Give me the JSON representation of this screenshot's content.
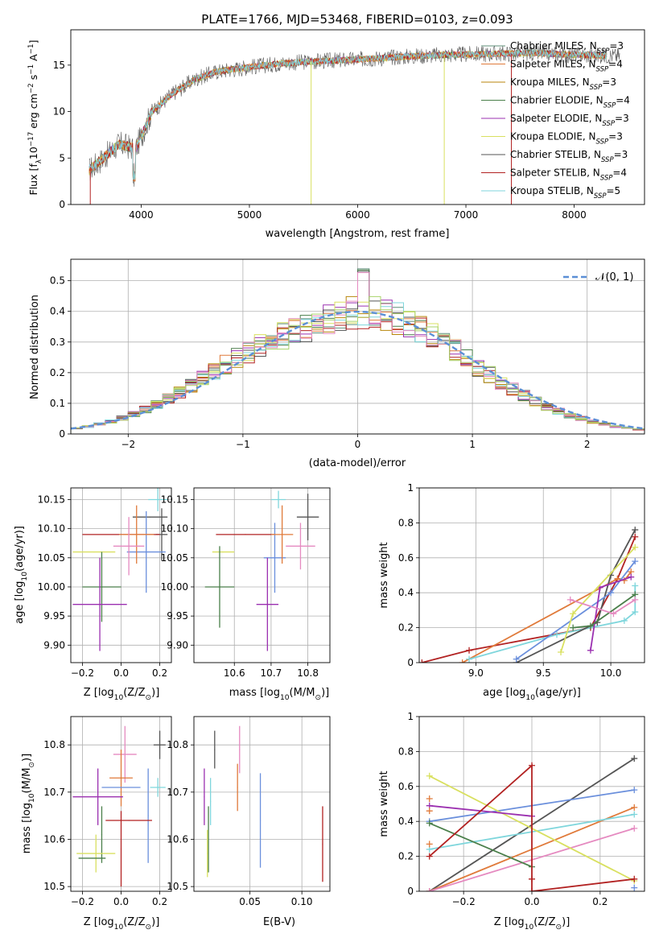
{
  "figure": {
    "title": "PLATE=1766, MJD=53468, FIBERID=0103, z=0.093"
  },
  "colors": {
    "Chabrier MILES": "#5f8f7a",
    "Salpeter MILES": "#e07a3a",
    "Kroupa MILES": "#b8860b",
    "Chabrier ELODIE": "#4a7f4a",
    "Salpeter ELODIE": "#9b30b0",
    "Kroupa ELODIE": "#d9e060",
    "Chabrier STELIB": "#555555",
    "Salpeter STELIB": "#b22222",
    "Kroupa STELIB": "#7fd6dc",
    "extra_blue": "#6a8fdc",
    "extra_pink": "#e58ac0",
    "extra_green": "#a8d36a"
  },
  "chart_data": [
    {
      "type": "line",
      "panel": "spectrum",
      "title": "PLATE=1766, MJD=53468, FIBERID=0103, z=0.093",
      "xlabel": "wavelength [Angstrom, rest frame]",
      "ylabel_parts": [
        "Flux [f",
        "λ",
        "10",
        "−17",
        " erg cm",
        "−2",
        " s",
        "−1",
        " A",
        "−1",
        "]"
      ],
      "xlim": [
        3350,
        8650
      ],
      "ylim": [
        0,
        18.8
      ],
      "xticks": [
        4000,
        5000,
        6000,
        7000,
        8000
      ],
      "yticks": [
        0,
        5,
        10,
        15
      ],
      "legend": "top-right",
      "series_names": [
        "Chabrier MILES, N_SSP=3",
        "Salpeter MILES, N_SSP=4",
        "Kroupa MILES, N_SSP=3",
        "Chabrier ELODIE, N_SSP=4",
        "Salpeter ELODIE, N_SSP=3",
        "Kroupa ELODIE, N_SSP=3",
        "Chabrier STELIB, N_SSP=3",
        "Salpeter STELIB, N_SSP=4",
        "Kroupa STELIB, N_SSP=5"
      ],
      "legend_entries": [
        {
          "base": "Chabrier MILES, N",
          "sub": "SSP",
          "tail": "=3",
          "color": "#5f8f7a"
        },
        {
          "base": "Salpeter MILES, N",
          "sub": "SSP",
          "tail": "=4",
          "color": "#e07a3a"
        },
        {
          "base": "Kroupa MILES, N",
          "sub": "SSP",
          "tail": "=3",
          "color": "#b8860b"
        },
        {
          "base": "Chabrier ELODIE, N",
          "sub": "SSP",
          "tail": "=4",
          "color": "#4a7f4a"
        },
        {
          "base": "Salpeter ELODIE, N",
          "sub": "SSP",
          "tail": "=3",
          "color": "#9b30b0"
        },
        {
          "base": "Kroupa ELODIE, N",
          "sub": "SSP",
          "tail": "=3",
          "color": "#d9e060"
        },
        {
          "base": "Chabrier STELIB, N",
          "sub": "SSP",
          "tail": "=3",
          "color": "#555555"
        },
        {
          "base": "Salpeter STELIB, N",
          "sub": "SSP",
          "tail": "=4",
          "color": "#b22222"
        },
        {
          "base": "Kroupa STELIB, N",
          "sub": "SSP",
          "tail": "=5",
          "color": "#7fd6dc"
        }
      ],
      "continuum": {
        "x": [
          3500,
          3650,
          3800,
          3950,
          4100,
          4300,
          4500,
          4700,
          5000,
          5300,
          5600,
          6000,
          6400,
          6800,
          7200,
          7600,
          8000,
          8400
        ],
        "y": [
          3.5,
          5.0,
          6.5,
          6.0,
          10.0,
          12.0,
          13.5,
          14.3,
          14.8,
          15.2,
          15.4,
          15.6,
          15.9,
          16.1,
          16.2,
          16.3,
          16.1,
          16.0
        ]
      },
      "drops": [
        {
          "x": 7420,
          "color": "#b22222"
        },
        {
          "x": 6800,
          "color": "#d9e060"
        },
        {
          "x": 5570,
          "color": "#d9e060"
        },
        {
          "x": 3530,
          "color": "#b22222"
        }
      ]
    },
    {
      "type": "bar",
      "panel": "residual histogram",
      "xlabel": "(data-model)/error",
      "ylabel": "Normed distribution",
      "xlim": [
        -2.5,
        2.5
      ],
      "ylim": [
        0,
        0.57
      ],
      "xticks": [
        -2,
        -1,
        0,
        1,
        2
      ],
      "yticks": [
        0.0,
        0.1,
        0.2,
        0.3,
        0.4,
        0.5
      ],
      "legend_label": "𝒩(0, 1)",
      "gauss_color": "#5b8fd6",
      "bin_edges_start": -2.5,
      "bin_width": 0.1,
      "gaussian_values": [
        0.018,
        0.024,
        0.032,
        0.041,
        0.052,
        0.065,
        0.08,
        0.097,
        0.116,
        0.136,
        0.158,
        0.18,
        0.203,
        0.226,
        0.248,
        0.269,
        0.288,
        0.306,
        0.321,
        0.334,
        0.347,
        0.358,
        0.372,
        0.39,
        0.397,
        0.399,
        0.397,
        0.39,
        0.377,
        0.361,
        0.341,
        0.319,
        0.295,
        0.27,
        0.244,
        0.218,
        0.193,
        0.169,
        0.146,
        0.125,
        0.106,
        0.089,
        0.074,
        0.061,
        0.05,
        0.04,
        0.032,
        0.025,
        0.02,
        0.015
      ]
    },
    {
      "type": "scatter",
      "panel": "age vs Z",
      "xlabel_parts": [
        "Z [log",
        "10",
        "(Z/Z",
        "⊙",
        ")]"
      ],
      "ylabel_parts": [
        "age  [log",
        "10",
        "(age/yr)]"
      ],
      "xlim": [
        -0.26,
        0.26
      ],
      "ylim": [
        9.87,
        10.17
      ],
      "xticks": [
        -0.2,
        0.0,
        0.2
      ],
      "xticklabels": [
        "−0.2",
        "0.0",
        "0.2"
      ],
      "yticks": [
        9.9,
        9.95,
        10.0,
        10.05,
        10.1,
        10.15
      ],
      "yticklabels": [
        "9.90",
        "9.95",
        "10.00",
        "10.05",
        "10.10",
        "10.15"
      ],
      "points": [
        {
          "x": 0.19,
          "y": 10.15,
          "xerr": 0.05,
          "yerr": 0.02,
          "color": "#7fd6dc"
        },
        {
          "x": 0.21,
          "y": 10.09,
          "xerr": 0.03,
          "yerr": 0.045,
          "color": "#555555"
        },
        {
          "x": 0.15,
          "y": 10.12,
          "xerr": 0.09,
          "yerr": 0.0,
          "color": "#555555"
        },
        {
          "x": 0.0,
          "y": 10.09,
          "xerr": 0.2,
          "yerr": 0.0,
          "color": "#b22222"
        },
        {
          "x": 0.13,
          "y": 10.06,
          "xerr": 0.1,
          "yerr": 0.07,
          "color": "#6a8fdc"
        },
        {
          "x": 0.08,
          "y": 10.09,
          "xerr": 0.09,
          "yerr": 0.05,
          "color": "#e07a3a"
        },
        {
          "x": 0.04,
          "y": 10.07,
          "xerr": 0.08,
          "yerr": 0.05,
          "color": "#e58ac0"
        },
        {
          "x": -0.14,
          "y": 10.06,
          "xerr": 0.11,
          "yerr": 0.0,
          "color": "#d9e060"
        },
        {
          "x": -0.1,
          "y": 10.0,
          "xerr": 0.1,
          "yerr": 0.06,
          "color": "#4a7f4a"
        },
        {
          "x": -0.11,
          "y": 9.97,
          "xerr": 0.14,
          "yerr": 0.08,
          "color": "#9b30b0"
        }
      ]
    },
    {
      "type": "scatter",
      "panel": "age vs mass",
      "xlabel_parts": [
        "mass [log",
        "10",
        "(M/M",
        "⊙",
        ")]"
      ],
      "xlim": [
        10.49,
        10.86
      ],
      "ylim": [
        9.87,
        10.17
      ],
      "xticks": [
        10.6,
        10.7,
        10.8
      ],
      "xticklabels": [
        "10.6",
        "10.7",
        "10.8"
      ],
      "yticks": [
        9.9,
        9.95,
        10.0,
        10.05,
        10.1,
        10.15
      ],
      "yticklabels": [
        "9.90",
        "9.95",
        "10.00",
        "10.05",
        "10.10",
        "10.15"
      ],
      "points": [
        {
          "x": 10.72,
          "y": 10.15,
          "xerr": 0.02,
          "yerr": 0.015,
          "color": "#7fd6dc"
        },
        {
          "x": 10.8,
          "y": 10.12,
          "xerr": 0.03,
          "yerr": 0.04,
          "color": "#555555"
        },
        {
          "x": 10.63,
          "y": 10.09,
          "xerr": 0.08,
          "yerr": 0.0,
          "color": "#b22222"
        },
        {
          "x": 10.71,
          "y": 10.05,
          "xerr": 0.03,
          "yerr": 0.06,
          "color": "#6a8fdc"
        },
        {
          "x": 10.73,
          "y": 10.09,
          "xerr": 0.03,
          "yerr": 0.05,
          "color": "#e07a3a"
        },
        {
          "x": 10.78,
          "y": 10.07,
          "xerr": 0.04,
          "yerr": 0.04,
          "color": "#e58ac0"
        },
        {
          "x": 10.57,
          "y": 10.06,
          "xerr": 0.03,
          "yerr": 0.0,
          "color": "#d9e060"
        },
        {
          "x": 10.56,
          "y": 10.0,
          "xerr": 0.04,
          "yerr": 0.07,
          "color": "#4a7f4a"
        },
        {
          "x": 10.69,
          "y": 9.97,
          "xerr": 0.03,
          "yerr": 0.08,
          "color": "#9b30b0"
        }
      ]
    },
    {
      "type": "line",
      "panel": "mass weight vs age",
      "xlabel_parts": [
        "age  [log",
        "10",
        "(age/yr)]"
      ],
      "ylabel": "mass weight",
      "xlim": [
        8.58,
        10.25
      ],
      "ylim": [
        0,
        1.0
      ],
      "xticks": [
        9.0,
        9.5,
        10.0
      ],
      "xticklabels": [
        "9.0",
        "9.5",
        "10.0"
      ],
      "yticks": [
        0.0,
        0.2,
        0.4,
        0.6,
        0.8,
        1.0
      ],
      "series": [
        {
          "color": "#b22222",
          "x": [
            8.6,
            8.95,
            9.85,
            10.05,
            10.18
          ],
          "y": [
            0.0,
            0.07,
            0.2,
            0.48,
            0.72
          ]
        },
        {
          "color": "#e07a3a",
          "x": [
            8.9,
            10.05,
            10.1,
            10.15
          ],
          "y": [
            0.0,
            0.48,
            0.47,
            0.52
          ]
        },
        {
          "color": "#7fd6dc",
          "x": [
            8.95,
            9.6,
            10.1,
            10.18,
            10.18
          ],
          "y": [
            0.02,
            0.16,
            0.24,
            0.29,
            0.44
          ]
        },
        {
          "color": "#555555",
          "x": [
            9.3,
            9.9,
            10.0,
            10.18
          ],
          "y": [
            0.0,
            0.23,
            0.5,
            0.76
          ]
        },
        {
          "color": "#6a8fdc",
          "x": [
            9.3,
            10.0,
            10.18
          ],
          "y": [
            0.02,
            0.4,
            0.58
          ]
        },
        {
          "color": "#9b30b0",
          "x": [
            9.85,
            9.92,
            10.15
          ],
          "y": [
            0.07,
            0.43,
            0.49
          ]
        },
        {
          "color": "#d9e060",
          "x": [
            9.63,
            9.72,
            10.18
          ],
          "y": [
            0.06,
            0.28,
            0.66
          ]
        },
        {
          "color": "#4a7f4a",
          "x": [
            9.72,
            9.85,
            10.18
          ],
          "y": [
            0.2,
            0.21,
            0.39
          ]
        },
        {
          "color": "#e58ac0",
          "x": [
            9.7,
            10.02,
            10.18
          ],
          "y": [
            0.36,
            0.28,
            0.36
          ]
        }
      ]
    },
    {
      "type": "scatter",
      "panel": "mass vs Z",
      "xlabel_parts": [
        "Z [log",
        "10",
        "(Z/Z",
        "⊙",
        ")]"
      ],
      "ylabel_parts": [
        "mass [log",
        "10",
        "(M/M",
        "⊙",
        ")]"
      ],
      "xlim": [
        -0.26,
        0.26
      ],
      "ylim": [
        10.49,
        10.86
      ],
      "xticks": [
        -0.2,
        0.0,
        0.2
      ],
      "xticklabels": [
        "−0.2",
        "0.0",
        "0.2"
      ],
      "yticks": [
        10.5,
        10.6,
        10.7,
        10.8
      ],
      "yticklabels": [
        "10.5",
        "10.6",
        "10.7",
        "10.8"
      ],
      "points": [
        {
          "x": 0.2,
          "y": 10.8,
          "xerr": 0.03,
          "yerr": 0.03,
          "color": "#555555"
        },
        {
          "x": 0.17,
          "y": 10.8,
          "xerr": 0.0,
          "yerr": 0.0,
          "color": "#555555"
        },
        {
          "x": 0.02,
          "y": 10.78,
          "xerr": 0.06,
          "yerr": 0.06,
          "color": "#e58ac0"
        },
        {
          "x": 0.0,
          "y": 10.73,
          "xerr": 0.06,
          "yerr": 0.06,
          "color": "#e07a3a"
        },
        {
          "x": 0.19,
          "y": 10.71,
          "xerr": 0.04,
          "yerr": 0.02,
          "color": "#7fd6dc"
        },
        {
          "x": 0.0,
          "y": 10.71,
          "xerr": 0.1,
          "yerr": 0.0,
          "color": "#6a8fdc"
        },
        {
          "x": 0.14,
          "y": 10.65,
          "xerr": 0.0,
          "yerr": 0.1,
          "color": "#6a8fdc"
        },
        {
          "x": -0.12,
          "y": 10.69,
          "xerr": 0.13,
          "yerr": 0.06,
          "color": "#9b30b0"
        },
        {
          "x": 0.04,
          "y": 10.64,
          "xerr": 0.12,
          "yerr": 0.0,
          "color": "#b22222"
        },
        {
          "x": 0.0,
          "y": 10.58,
          "xerr": 0.0,
          "yerr": 0.08,
          "color": "#b22222"
        },
        {
          "x": -0.1,
          "y": 10.61,
          "xerr": 0.0,
          "yerr": 0.06,
          "color": "#4a7f4a"
        },
        {
          "x": -0.13,
          "y": 10.57,
          "xerr": 0.1,
          "yerr": 0.04,
          "color": "#d9e060"
        },
        {
          "x": -0.15,
          "y": 10.56,
          "xerr": 0.07,
          "yerr": 0.0,
          "color": "#4a7f4a"
        }
      ]
    },
    {
      "type": "scatter",
      "panel": "mass vs E(B-V)",
      "xlabel": "E(B-V)",
      "xlim": [
        -0.004,
        0.127
      ],
      "ylim": [
        10.49,
        10.86
      ],
      "xticks": [
        0.05,
        0.1
      ],
      "xticklabels": [
        "0.05",
        "0.10"
      ],
      "yticks": [
        10.5,
        10.6,
        10.7,
        10.8
      ],
      "yticklabels": [
        "10.5",
        "10.6",
        "10.7",
        "10.8"
      ],
      "points": [
        {
          "x": 0.016,
          "y": 10.79,
          "yerr": 0.04,
          "color": "#555555"
        },
        {
          "x": 0.04,
          "y": 10.79,
          "yerr": 0.05,
          "color": "#e58ac0"
        },
        {
          "x": 0.038,
          "y": 10.71,
          "yerr": 0.05,
          "color": "#e07a3a"
        },
        {
          "x": 0.006,
          "y": 10.69,
          "yerr": 0.06,
          "color": "#9b30b0"
        },
        {
          "x": 0.012,
          "y": 10.68,
          "yerr": 0.05,
          "color": "#7fd6dc"
        },
        {
          "x": 0.06,
          "y": 10.64,
          "yerr": 0.1,
          "color": "#6a8fdc"
        },
        {
          "x": 0.12,
          "y": 10.59,
          "yerr": 0.08,
          "color": "#b22222"
        },
        {
          "x": 0.01,
          "y": 10.6,
          "yerr": 0.07,
          "color": "#4a7f4a"
        },
        {
          "x": 0.009,
          "y": 10.57,
          "yerr": 0.05,
          "color": "#d9e060"
        }
      ]
    },
    {
      "type": "line",
      "panel": "mass weight vs Z",
      "xlabel_parts": [
        "Z [log",
        "10",
        "(Z/Z",
        "⊙",
        ")]"
      ],
      "ylabel": "mass weight",
      "xlim": [
        -0.33,
        0.33
      ],
      "ylim": [
        0,
        1.0
      ],
      "xticks": [
        -0.2,
        0.0,
        0.2
      ],
      "xticklabels": [
        "−0.2",
        "0.0",
        "0.2"
      ],
      "yticks": [
        0.0,
        0.2,
        0.4,
        0.6,
        0.8,
        1.0
      ],
      "series": [
        {
          "color": "#555555",
          "x": [
            -0.3,
            0.3
          ],
          "y": [
            0.0,
            0.76
          ]
        },
        {
          "color": "#6a8fdc",
          "x": [
            -0.3,
            0.3
          ],
          "y": [
            0.4,
            0.58
          ]
        },
        {
          "color": "#e07a3a",
          "x": [
            -0.3,
            0.3
          ],
          "y": [
            0.0,
            0.48
          ]
        },
        {
          "color": "#7fd6dc",
          "x": [
            -0.3,
            0.3
          ],
          "y": [
            0.24,
            0.44
          ]
        },
        {
          "color": "#e58ac0",
          "x": [
            -0.3,
            0.3
          ],
          "y": [
            0.0,
            0.36
          ]
        },
        {
          "color": "#d9e060",
          "x": [
            -0.3,
            0.3
          ],
          "y": [
            0.66,
            0.06
          ]
        },
        {
          "color": "#9b30b0",
          "x": [
            -0.3,
            0.0
          ],
          "y": [
            0.49,
            0.43
          ]
        },
        {
          "color": "#4a7f4a",
          "x": [
            -0.3,
            0.0
          ],
          "y": [
            0.39,
            0.14
          ]
        },
        {
          "color": "#b22222",
          "x": [
            -0.3,
            0.0,
            0.0,
            0.3
          ],
          "y": [
            0.2,
            0.72,
            0.0,
            0.07
          ]
        }
      ],
      "markers": [
        {
          "color": "#e07a3a",
          "x": -0.3,
          "y": 0.53
        },
        {
          "color": "#e07a3a",
          "x": -0.3,
          "y": 0.46
        },
        {
          "color": "#e07a3a",
          "x": -0.3,
          "y": 0.27
        },
        {
          "color": "#b22222",
          "x": 0.0,
          "y": 0.07
        },
        {
          "color": "#6a8fdc",
          "x": 0.3,
          "y": 0.02
        }
      ]
    }
  ]
}
